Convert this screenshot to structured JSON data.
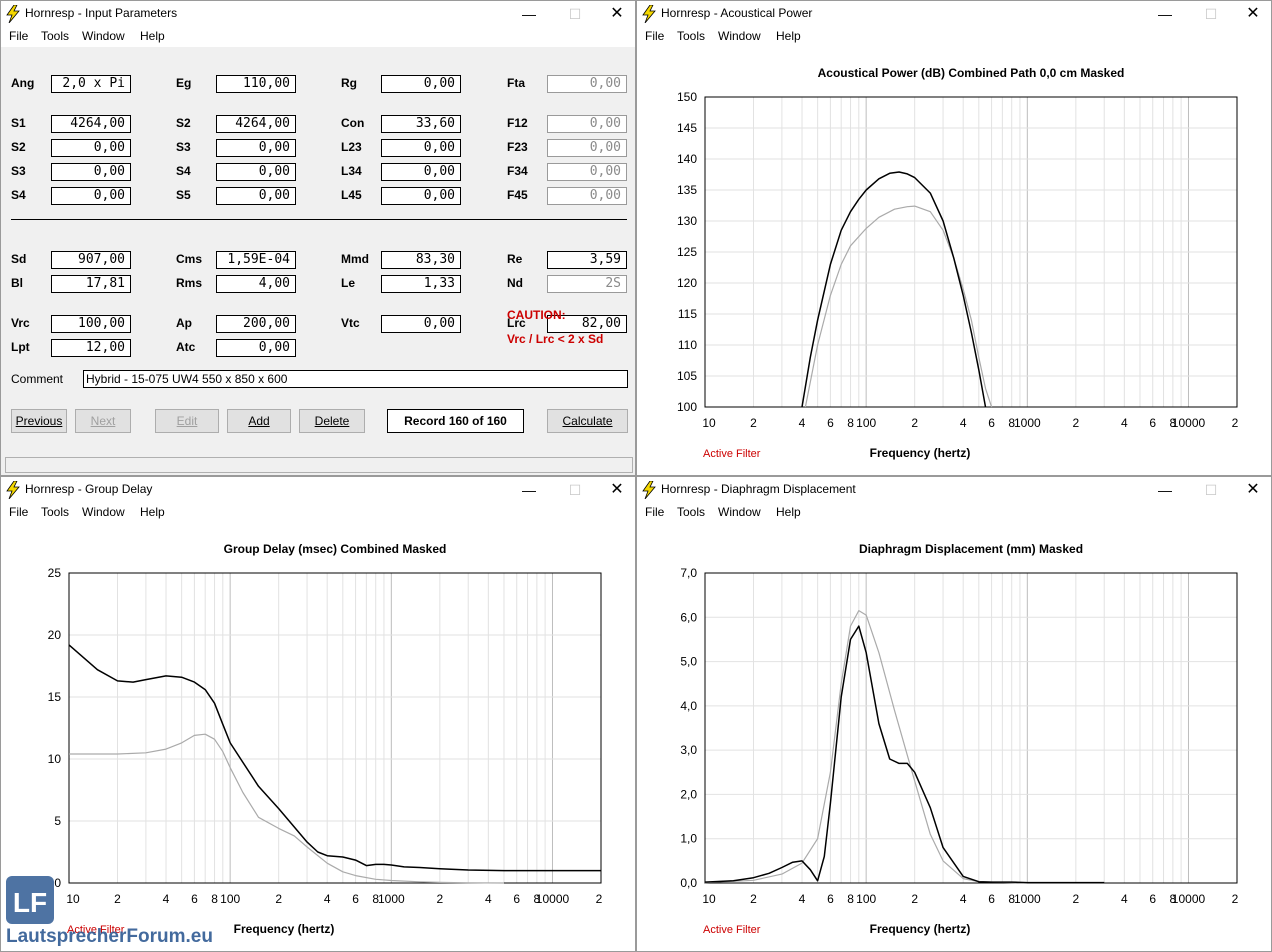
{
  "app_name": "Hornresp",
  "menu": [
    "File",
    "Tools",
    "Window",
    "Help"
  ],
  "windows": {
    "input": {
      "title": "Hornresp - Input Parameters"
    },
    "power": {
      "title": "Hornresp - Acoustical Power"
    },
    "delay": {
      "title": "Hornresp - Group Delay"
    },
    "displacement": {
      "title": "Hornresp - Diaphragm Displacement"
    }
  },
  "input": {
    "params": [
      {
        "label": "Ang",
        "value": "2,0 x Pi"
      },
      {
        "label": "Eg",
        "value": "110,00"
      },
      {
        "label": "Rg",
        "value": "0,00"
      },
      {
        "label": "Fta",
        "value": "0,00",
        "readonly": true
      },
      {
        "label": "S1",
        "value": "4264,00"
      },
      {
        "label": "S2",
        "value": "4264,00"
      },
      {
        "label": "Con",
        "value": "33,60"
      },
      {
        "label": "F12",
        "value": "0,00",
        "readonly": true
      },
      {
        "label": "S2",
        "value": "0,00"
      },
      {
        "label": "S3",
        "value": "0,00"
      },
      {
        "label": "L23",
        "value": "0,00"
      },
      {
        "label": "F23",
        "value": "0,00",
        "readonly": true
      },
      {
        "label": "S3",
        "value": "0,00"
      },
      {
        "label": "S4",
        "value": "0,00"
      },
      {
        "label": "L34",
        "value": "0,00"
      },
      {
        "label": "F34",
        "value": "0,00",
        "readonly": true
      },
      {
        "label": "S4",
        "value": "0,00"
      },
      {
        "label": "S5",
        "value": "0,00"
      },
      {
        "label": "L45",
        "value": "0,00"
      },
      {
        "label": "F45",
        "value": "0,00",
        "readonly": true
      },
      {
        "label": "Sd",
        "value": "907,00"
      },
      {
        "label": "Cms",
        "value": "1,59E-04"
      },
      {
        "label": "Mmd",
        "value": "83,30"
      },
      {
        "label": "Re",
        "value": "3,59"
      },
      {
        "label": "Bl",
        "value": "17,81"
      },
      {
        "label": "Rms",
        "value": "4,00"
      },
      {
        "label": "Le",
        "value": "1,33"
      },
      {
        "label": "Nd",
        "value": "2S",
        "readonly": true
      },
      {
        "label": "Vrc",
        "value": "100,00"
      },
      {
        "label": "Ap",
        "value": "200,00"
      },
      {
        "label": "Vtc",
        "value": "0,00"
      },
      {
        "label": "Lrc",
        "value": "82,00"
      },
      {
        "label": "Lpt",
        "value": "12,00"
      },
      {
        "label": "Atc",
        "value": "0,00"
      }
    ],
    "caution_title": "CAUTION:",
    "caution_text": "Vrc / Lrc < 2 x Sd",
    "comment_label": "Comment",
    "comment_value": "Hybrid - 15-075 UW4 550 x 850 x 600",
    "buttons": {
      "previous": "Previous",
      "next": "Next",
      "edit": "Edit",
      "add": "Add",
      "delete": "Delete",
      "calculate": "Calculate"
    },
    "record": "Record 160 of 160"
  },
  "x_tick_labels": [
    "10",
    "2",
    "4",
    "6",
    "8",
    "100",
    "2",
    "4",
    "6",
    "8",
    "1000",
    "2",
    "4",
    "6",
    "8",
    "10000",
    "2"
  ],
  "active_filter": "Active Filter",
  "frequency_label": "Frequency (hertz)",
  "watermark": {
    "logo": "LF",
    "text": "LautsprecherForum.eu"
  },
  "chart_data": [
    {
      "id": "power",
      "type": "line",
      "title": "Acoustical Power (dB)   Combined   Path 0,0 cm   Masked",
      "xlabel": "Frequency (hertz)",
      "xscale": "log",
      "xlim": [
        10,
        20000
      ],
      "ylim": [
        100,
        150
      ],
      "yticks": [
        "150",
        "145",
        "140",
        "135",
        "130",
        "125",
        "120",
        "115",
        "110",
        "105",
        "100"
      ],
      "grid": true,
      "series": [
        {
          "color": "#000000",
          "x": [
            40,
            45,
            50,
            60,
            70,
            80,
            90,
            100,
            120,
            140,
            160,
            180,
            200,
            250,
            300,
            350,
            400,
            450,
            500,
            550
          ],
          "y": [
            100,
            108,
            114,
            123,
            128.5,
            131.5,
            133.5,
            135,
            136.8,
            137.7,
            137.9,
            137.6,
            137,
            134.5,
            130,
            124,
            118,
            112,
            106,
            100
          ]
        },
        {
          "color": "#aaaaaa",
          "x": [
            42,
            50,
            60,
            70,
            80,
            100,
            120,
            150,
            180,
            200,
            250,
            300,
            350,
            400,
            450,
            500,
            550,
            600
          ],
          "y": [
            100,
            110,
            118,
            123,
            126,
            128.8,
            130.6,
            131.9,
            132.3,
            132.4,
            131.5,
            128.5,
            124,
            119,
            114,
            108,
            103,
            100
          ]
        }
      ]
    },
    {
      "id": "delay",
      "type": "line",
      "title": "Group Delay (msec)   Combined   Masked",
      "xlabel": "Frequency (hertz)",
      "xscale": "log",
      "xlim": [
        10,
        20000
      ],
      "ylim": [
        0,
        25
      ],
      "yticks": [
        "25",
        "20",
        "15",
        "10",
        "5",
        "0"
      ],
      "grid": true,
      "series": [
        {
          "color": "#000000",
          "x": [
            10,
            15,
            20,
            25,
            30,
            40,
            50,
            60,
            70,
            80,
            90,
            100,
            150,
            200,
            300,
            350,
            400,
            500,
            600,
            700,
            800,
            900,
            1000,
            1200,
            1500,
            2000,
            3000,
            5000,
            10000,
            20000
          ],
          "y": [
            19.2,
            17.2,
            16.3,
            16.2,
            16.4,
            16.7,
            16.6,
            16.2,
            15.6,
            14.5,
            12.8,
            11.3,
            7.8,
            6,
            3.3,
            2.5,
            2.2,
            2.1,
            1.85,
            1.4,
            1.5,
            1.5,
            1.45,
            1.3,
            1.25,
            1.15,
            1.05,
            1,
            1,
            1
          ]
        },
        {
          "color": "#aaaaaa",
          "x": [
            10,
            20,
            30,
            40,
            50,
            60,
            70,
            80,
            90,
            100,
            120,
            150,
            200,
            250,
            300,
            400,
            500,
            600,
            800,
            1000,
            1500,
            2000,
            3000,
            5000
          ],
          "y": [
            10.4,
            10.4,
            10.5,
            10.8,
            11.3,
            11.9,
            12,
            11.6,
            10.6,
            9.3,
            7.3,
            5.3,
            4.4,
            3.8,
            2.9,
            1.6,
            0.9,
            0.6,
            0.3,
            0.2,
            0.1,
            0.05,
            0.02,
            0
          ]
        }
      ]
    },
    {
      "id": "displacement",
      "type": "line",
      "title": "Diaphragm Displacement (mm)   Masked",
      "xlabel": "Frequency (hertz)",
      "xscale": "log",
      "xlim": [
        10,
        20000
      ],
      "ylim": [
        0,
        7
      ],
      "yticks": [
        "7,0",
        "6,0",
        "5,0",
        "4,0",
        "3,0",
        "2,0",
        "1,0",
        "0,0"
      ],
      "grid": true,
      "series": [
        {
          "color": "#000000",
          "x": [
            10,
            15,
            20,
            25,
            30,
            35,
            40,
            45,
            50,
            55,
            60,
            70,
            80,
            90,
            100,
            120,
            140,
            160,
            180,
            200,
            250,
            300,
            400,
            500,
            600,
            800,
            1000,
            2000,
            3000
          ],
          "y": [
            0.02,
            0.05,
            0.12,
            0.22,
            0.35,
            0.47,
            0.5,
            0.3,
            0.05,
            0.6,
            1.8,
            4.2,
            5.5,
            5.8,
            5.2,
            3.6,
            2.8,
            2.7,
            2.7,
            2.5,
            1.7,
            0.8,
            0.15,
            0.03,
            0.02,
            0.02,
            0.01,
            0.01,
            0.01
          ]
        },
        {
          "color": "#aaaaaa",
          "x": [
            10,
            20,
            30,
            40,
            50,
            60,
            70,
            80,
            90,
            100,
            120,
            150,
            200,
            250,
            300,
            400,
            500,
            800,
            1000
          ],
          "y": [
            0.01,
            0.06,
            0.2,
            0.45,
            1,
            2.5,
            4.5,
            5.8,
            6.15,
            6.05,
            5.2,
            3.9,
            2.3,
            1.1,
            0.5,
            0.1,
            0.03,
            0.01,
            0
          ]
        }
      ]
    }
  ]
}
